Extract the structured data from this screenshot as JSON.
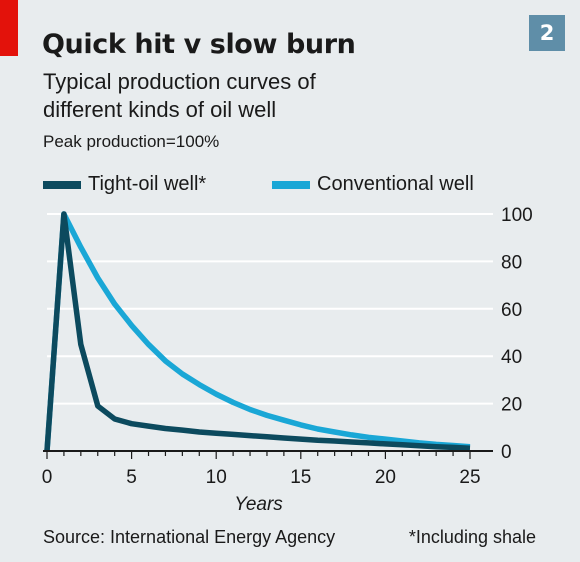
{
  "chart_number": "2",
  "title": "Quick hit v slow burn",
  "subtitle_line1": "Typical production curves of",
  "subtitle_line2": "different kinds of oil well",
  "note": "Peak production=100%",
  "source": "Source: International Energy Agency",
  "footnote": "*Including shale",
  "colors": {
    "background": "#e8ecee",
    "tight_oil": "#0c4a5e",
    "conventional": "#1aa7d6",
    "brand_red": "#e3120b",
    "badge": "#5f8ea8"
  },
  "chart_data": {
    "type": "line",
    "title": "Quick hit v slow burn",
    "subtitle": "Typical production curves of different kinds of oil well",
    "xlabel": "Years",
    "ylabel": "",
    "xlim": [
      0,
      25
    ],
    "ylim": [
      0,
      100
    ],
    "xticks": [
      "0",
      "5",
      "10",
      "15",
      "20",
      "25"
    ],
    "xtick_values": [
      0,
      5,
      10,
      15,
      20,
      25
    ],
    "yticks": [
      "0",
      "20",
      "40",
      "60",
      "80",
      "100"
    ],
    "ytick_values": [
      0,
      20,
      40,
      60,
      80,
      100
    ],
    "grid": "horizontal",
    "legend_position": "top",
    "series": [
      {
        "name": "Tight-oil well*",
        "color": "#0c4a5e",
        "x": [
          0,
          1,
          2,
          3,
          4,
          5,
          6,
          7,
          8,
          9,
          10,
          11,
          12,
          13,
          14,
          15,
          16,
          17,
          18,
          19,
          20,
          21,
          22,
          23,
          24,
          25
        ],
        "y": [
          0,
          100,
          45,
          19,
          13.5,
          11.5,
          10.5,
          9.5,
          8.8,
          8,
          7.5,
          7,
          6.5,
          6,
          5.5,
          5,
          4.5,
          4.2,
          3.8,
          3.4,
          3,
          2.6,
          2.2,
          1.8,
          1.5,
          1.2
        ]
      },
      {
        "name": "Conventional well",
        "color": "#1aa7d6",
        "x": [
          0,
          1,
          2,
          3,
          4,
          5,
          6,
          7,
          8,
          9,
          10,
          11,
          12,
          13,
          14,
          15,
          16,
          17,
          18,
          19,
          20,
          21,
          22,
          23,
          24,
          25
        ],
        "y": [
          0,
          100,
          86,
          73,
          62,
          53,
          45,
          38,
          32.5,
          28,
          24,
          20.5,
          17.5,
          15,
          13,
          11,
          9.3,
          8,
          6.8,
          5.8,
          5,
          4.2,
          3.4,
          2.8,
          2.3,
          1.8
        ]
      }
    ]
  }
}
